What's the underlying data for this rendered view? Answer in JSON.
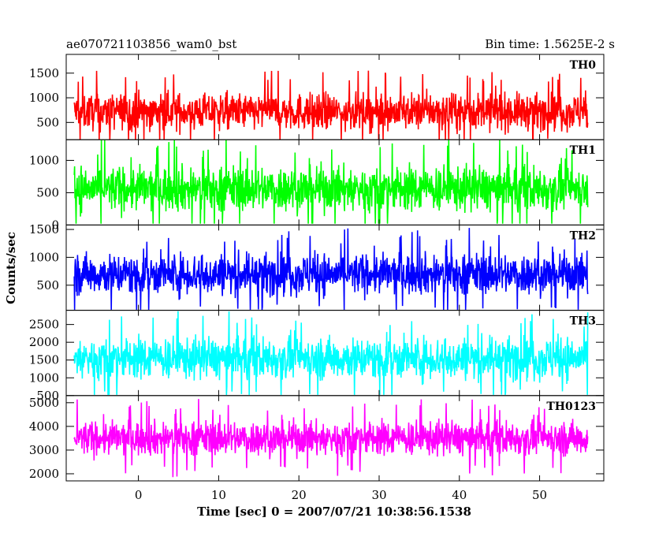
{
  "header": {
    "title": "ae070721103856_wam0_bst",
    "bin_time": "Bin time: 1.5625E-2 s"
  },
  "chart_data": {
    "type": "line",
    "title": "ae070721103856_wam0_bst",
    "xlabel": "Time [sec] 0 = 2007/07/21 10:38:56.1538",
    "ylabel": "Counts/sec",
    "xlim": [
      -9,
      58
    ],
    "x_data_range": [
      -8,
      56
    ],
    "x_ticks": [
      0,
      10,
      20,
      30,
      40,
      50
    ],
    "grid": false,
    "panels": [
      {
        "name": "TH0",
        "color": "#ff0000",
        "ylim": [
          150,
          1880
        ],
        "y_ticks": [
          500,
          1000,
          1500
        ],
        "mean": 720,
        "spread": 260,
        "floor": 150,
        "ceiling": 1850
      },
      {
        "name": "TH1",
        "color": "#00ff00",
        "ylim": [
          0,
          1320
        ],
        "y_ticks": [
          0,
          500,
          1000
        ],
        "mean": 560,
        "spread": 250,
        "floor": 20,
        "ceiling": 1320
      },
      {
        "name": "TH2",
        "color": "#0000ff",
        "ylim": [
          50,
          1580
        ],
        "y_ticks": [
          500,
          1000,
          1500
        ],
        "mean": 700,
        "spread": 260,
        "floor": 60,
        "ceiling": 1580
      },
      {
        "name": "TH3",
        "color": "#00ffff",
        "ylim": [
          500,
          2900
        ],
        "y_ticks": [
          500,
          1000,
          1500,
          2000,
          2500
        ],
        "mean": 1550,
        "spread": 420,
        "floor": 520,
        "ceiling": 2900
      },
      {
        "name": "TH0123",
        "color": "#ff00ff",
        "ylim": [
          1700,
          5300
        ],
        "y_ticks": [
          2000,
          3000,
          4000,
          5000
        ],
        "mean": 3500,
        "spread": 520,
        "floor": 1720,
        "ceiling": 5300
      }
    ]
  }
}
